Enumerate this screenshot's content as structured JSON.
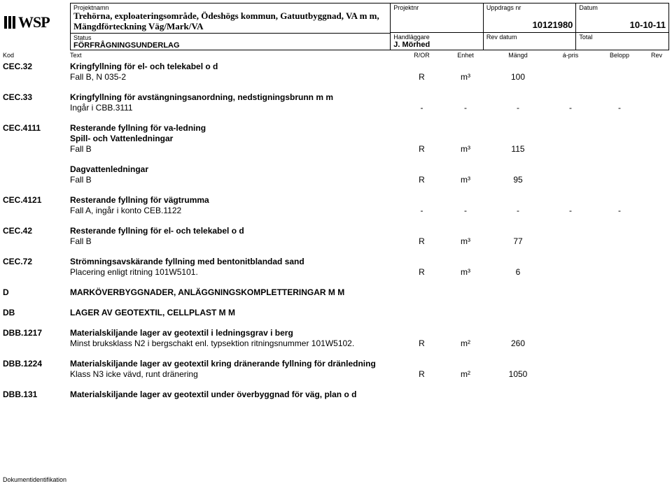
{
  "header": {
    "labels": {
      "projektnamn": "Projektnamn",
      "projektnr": "Projektnr",
      "uppdragsnr": "Uppdrags nr",
      "datum": "Datum",
      "status": "Status",
      "handlaggare": "Handläggare",
      "revdatum": "Rev datum",
      "total": "Total"
    },
    "projektnamn_line1": "Trehörna, exploateringsområde, Ödeshögs kommun, Gatuutbyggnad, VA m m,",
    "projektnamn_line2": "Mängdförteckning Väg/Mark/VA",
    "uppdragsnr": "10121980",
    "datum": "10-10-11",
    "status": "FÖRFRÅGNINGSUNDERLAG",
    "handlaggare": "J. Mörhed"
  },
  "cols": {
    "kod": "Kod",
    "text": "Text",
    "ror": "R/OR",
    "enhet": "Enhet",
    "mangd": "Mängd",
    "apris": "á-pris",
    "belopp": "Belopp",
    "rev": "Rev"
  },
  "logo": "WSP",
  "rows": [
    {
      "kod": "CEC.32",
      "text": "Kringfyllning för el- och telekabel o d",
      "bold": true
    },
    {
      "kod": "",
      "text": "Fall B, N 035-2",
      "ror": "R",
      "enhet": "m³",
      "mangd": "100"
    },
    {
      "spacer": true
    },
    {
      "kod": "CEC.33",
      "text": "Kringfyllning för avstängningsanordning, nedstigningsbrunn m m",
      "bold": true
    },
    {
      "kod": "",
      "text": "Ingår i CBB.3111",
      "ror": "-",
      "enhet": "-",
      "mangd": "-",
      "apris": "-",
      "belopp": "-"
    },
    {
      "spacer": true
    },
    {
      "kod": "CEC.4111",
      "text": "Resterande fyllning för va-ledning",
      "bold": true
    },
    {
      "kod": "",
      "text": "Spill- och Vattenledningar",
      "bold": true
    },
    {
      "kod": "",
      "text": "Fall B",
      "ror": "R",
      "enhet": "m³",
      "mangd": "115"
    },
    {
      "spacer": true
    },
    {
      "kod": "",
      "text": "Dagvattenledningar",
      "bold": true
    },
    {
      "kod": "",
      "text": "Fall B",
      "ror": "R",
      "enhet": "m³",
      "mangd": "95"
    },
    {
      "spacer": true
    },
    {
      "kod": "CEC.4121",
      "text": "Resterande fyllning för vägtrumma",
      "bold": true
    },
    {
      "kod": "",
      "text": "Fall A, ingår i konto CEB.1122",
      "ror": "-",
      "enhet": "-",
      "mangd": "-",
      "apris": "-",
      "belopp": "-"
    },
    {
      "spacer": true
    },
    {
      "kod": "CEC.42",
      "text": "Resterande fyllning för el- och telekabel o d",
      "bold": true
    },
    {
      "kod": "",
      "text": "Fall B",
      "ror": "R",
      "enhet": "m³",
      "mangd": "77"
    },
    {
      "spacer": true
    },
    {
      "kod": "CEC.72",
      "text": "Strömningsavskärande fyllning med bentonitblandad sand",
      "bold": true
    },
    {
      "kod": "",
      "text": "Placering enligt ritning 101W5101.",
      "ror": "R",
      "enhet": "m³",
      "mangd": "6"
    },
    {
      "spacer": true
    },
    {
      "kod": "D",
      "text": "MARKÖVERBYGGNADER, ANLÄGGNINGSKOMPLETTERINGAR M M",
      "bold": true
    },
    {
      "spacer": true
    },
    {
      "kod": "DB",
      "text": "LAGER AV GEOTEXTIL, CELLPLAST M M",
      "bold": true
    },
    {
      "spacer": true
    },
    {
      "kod": "DBB.1217",
      "text": "Materialskiljande lager av geotextil i ledningsgrav i berg",
      "bold": true
    },
    {
      "kod": "",
      "text": "Minst bruksklass N2 i bergschakt enl. typsektion ritningsnummer 101W5102.",
      "ror": "R",
      "enhet": "m²",
      "mangd": "260"
    },
    {
      "spacer": true
    },
    {
      "kod": "DBB.1224",
      "text": "Materialskiljande lager av geotextil kring dränerande fyllning för dränledning",
      "bold": true
    },
    {
      "kod": "",
      "text": "Klass N3 icke vävd, runt dränering",
      "ror": "R",
      "enhet": "m²",
      "mangd": "1050"
    },
    {
      "spacer": true
    },
    {
      "kod": "DBB.131",
      "text": "Materialskiljande lager av geotextil under överbyggnad för väg, plan o d",
      "bold": true
    }
  ],
  "footer": "Dokumentidentifikation"
}
